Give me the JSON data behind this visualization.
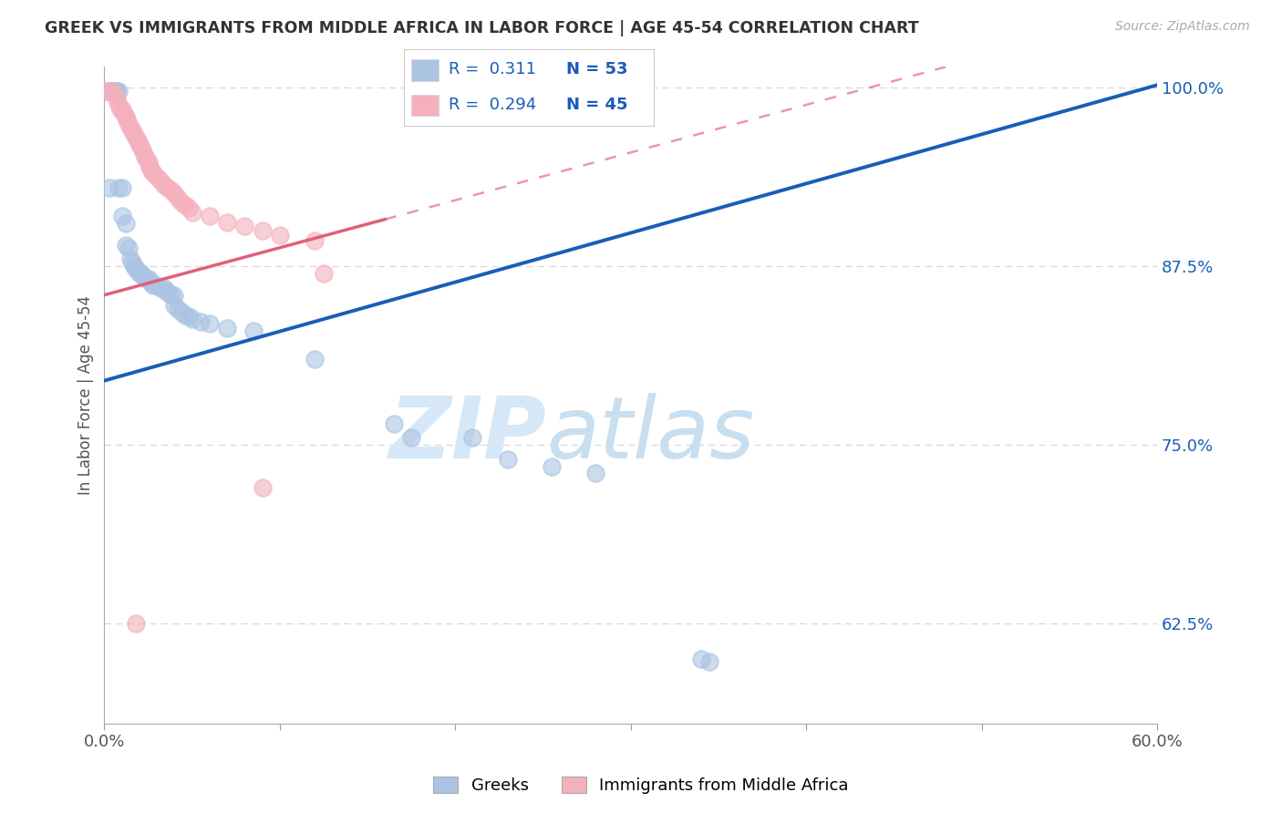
{
  "title": "GREEK VS IMMIGRANTS FROM MIDDLE AFRICA IN LABOR FORCE | AGE 45-54 CORRELATION CHART",
  "source": "Source: ZipAtlas.com",
  "ylabel": "In Labor Force | Age 45-54",
  "xlim": [
    0.0,
    0.6
  ],
  "ylim": [
    0.555,
    1.015
  ],
  "yticks": [
    0.625,
    0.75,
    0.875,
    1.0
  ],
  "ytick_labels": [
    "62.5%",
    "75.0%",
    "87.5%",
    "100.0%"
  ],
  "xtick_positions": [
    0.0,
    0.1,
    0.2,
    0.3,
    0.4,
    0.5,
    0.6
  ],
  "xtick_labels": [
    "0.0%",
    "",
    "",
    "",
    "",
    "",
    "60.0%"
  ],
  "legend_blue_label": "Greeks",
  "legend_pink_label": "Immigrants from Middle Africa",
  "r_blue": "0.311",
  "n_blue": "53",
  "r_pink": "0.294",
  "n_pink": "45",
  "blue_color": "#aac4e2",
  "pink_color": "#f4b0bc",
  "blue_line_color": "#1a5cb8",
  "pink_line_color": "#e0607a",
  "blue_line": [
    [
      0.0,
      0.795
    ],
    [
      0.6,
      1.002
    ]
  ],
  "pink_line_solid": [
    [
      0.0,
      0.855
    ],
    [
      0.16,
      0.908
    ]
  ],
  "pink_line_dashed": [
    [
      0.16,
      0.908
    ],
    [
      0.6,
      1.055
    ]
  ],
  "blue_scatter": [
    [
      0.002,
      0.998
    ],
    [
      0.003,
      0.998
    ],
    [
      0.004,
      0.998
    ],
    [
      0.005,
      0.998
    ],
    [
      0.006,
      0.998
    ],
    [
      0.007,
      0.998
    ],
    [
      0.008,
      0.998
    ],
    [
      0.003,
      0.93
    ],
    [
      0.008,
      0.93
    ],
    [
      0.01,
      0.93
    ],
    [
      0.01,
      0.91
    ],
    [
      0.012,
      0.905
    ],
    [
      0.012,
      0.89
    ],
    [
      0.014,
      0.888
    ],
    [
      0.015,
      0.88
    ],
    [
      0.016,
      0.878
    ],
    [
      0.017,
      0.875
    ],
    [
      0.018,
      0.873
    ],
    [
      0.019,
      0.872
    ],
    [
      0.02,
      0.87
    ],
    [
      0.021,
      0.87
    ],
    [
      0.022,
      0.868
    ],
    [
      0.023,
      0.867
    ],
    [
      0.025,
      0.866
    ],
    [
      0.026,
      0.865
    ],
    [
      0.027,
      0.863
    ],
    [
      0.028,
      0.862
    ],
    [
      0.03,
      0.862
    ],
    [
      0.032,
      0.86
    ],
    [
      0.034,
      0.86
    ],
    [
      0.035,
      0.858
    ],
    [
      0.036,
      0.857
    ],
    [
      0.038,
      0.855
    ],
    [
      0.04,
      0.855
    ],
    [
      0.04,
      0.848
    ],
    [
      0.042,
      0.845
    ],
    [
      0.044,
      0.843
    ],
    [
      0.046,
      0.841
    ],
    [
      0.048,
      0.84
    ],
    [
      0.05,
      0.838
    ],
    [
      0.055,
      0.836
    ],
    [
      0.06,
      0.835
    ],
    [
      0.07,
      0.832
    ],
    [
      0.085,
      0.83
    ],
    [
      0.12,
      0.81
    ],
    [
      0.165,
      0.765
    ],
    [
      0.175,
      0.755
    ],
    [
      0.21,
      0.755
    ],
    [
      0.23,
      0.74
    ],
    [
      0.255,
      0.735
    ],
    [
      0.28,
      0.73
    ],
    [
      0.34,
      0.6
    ],
    [
      0.345,
      0.598
    ]
  ],
  "pink_scatter": [
    [
      0.002,
      0.998
    ],
    [
      0.004,
      0.998
    ],
    [
      0.006,
      0.996
    ],
    [
      0.007,
      0.992
    ],
    [
      0.008,
      0.988
    ],
    [
      0.009,
      0.985
    ],
    [
      0.01,
      0.985
    ],
    [
      0.011,
      0.982
    ],
    [
      0.012,
      0.98
    ],
    [
      0.013,
      0.978
    ],
    [
      0.014,
      0.975
    ],
    [
      0.015,
      0.972
    ],
    [
      0.016,
      0.97
    ],
    [
      0.017,
      0.968
    ],
    [
      0.018,
      0.965
    ],
    [
      0.019,
      0.963
    ],
    [
      0.02,
      0.96
    ],
    [
      0.021,
      0.958
    ],
    [
      0.022,
      0.955
    ],
    [
      0.023,
      0.952
    ],
    [
      0.024,
      0.95
    ],
    [
      0.025,
      0.948
    ],
    [
      0.026,
      0.945
    ],
    [
      0.027,
      0.942
    ],
    [
      0.028,
      0.94
    ],
    [
      0.03,
      0.938
    ],
    [
      0.032,
      0.935
    ],
    [
      0.034,
      0.932
    ],
    [
      0.036,
      0.93
    ],
    [
      0.038,
      0.928
    ],
    [
      0.04,
      0.926
    ],
    [
      0.042,
      0.923
    ],
    [
      0.044,
      0.92
    ],
    [
      0.046,
      0.918
    ],
    [
      0.048,
      0.916
    ],
    [
      0.05,
      0.913
    ],
    [
      0.06,
      0.91
    ],
    [
      0.07,
      0.906
    ],
    [
      0.08,
      0.903
    ],
    [
      0.09,
      0.9
    ],
    [
      0.1,
      0.897
    ],
    [
      0.12,
      0.893
    ],
    [
      0.018,
      0.625
    ],
    [
      0.09,
      0.72
    ],
    [
      0.125,
      0.87
    ]
  ],
  "watermark_zip": "ZIP",
  "watermark_atlas": "atlas",
  "watermark_color": "#d6e8f7",
  "background_color": "#ffffff",
  "grid_color": "#d8d8d8"
}
